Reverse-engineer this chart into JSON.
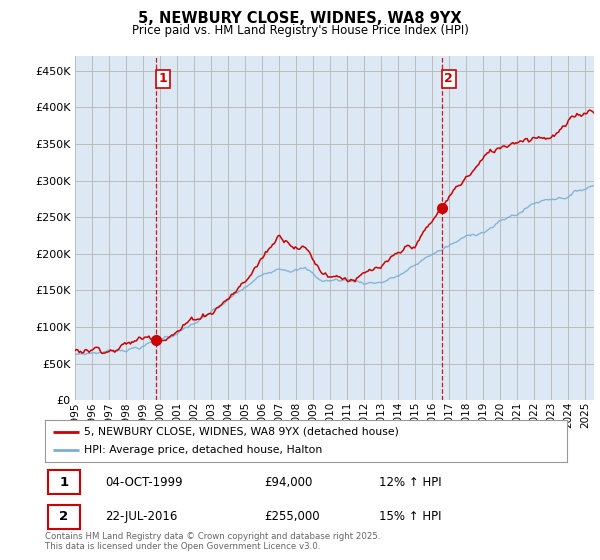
{
  "title": "5, NEWBURY CLOSE, WIDNES, WA8 9YX",
  "subtitle": "Price paid vs. HM Land Registry's House Price Index (HPI)",
  "y_values": [
    0,
    50000,
    100000,
    150000,
    200000,
    250000,
    300000,
    350000,
    400000,
    450000
  ],
  "ylim": [
    0,
    470000
  ],
  "xlim_start": 1995.0,
  "xlim_end": 2025.5,
  "red_line_color": "#CC0000",
  "blue_line_color": "#7BAFD4",
  "chart_bg_color": "#DCE9F5",
  "vline_color": "#CC0000",
  "bg_color": "#FFFFFF",
  "grid_color": "#BBBBBB",
  "legend_label_red": "5, NEWBURY CLOSE, WIDNES, WA8 9YX (detached house)",
  "legend_label_blue": "HPI: Average price, detached house, Halton",
  "transaction1_date": "04-OCT-1999",
  "transaction1_price": "£94,000",
  "transaction1_hpi": "12% ↑ HPI",
  "transaction1_year": 1999.75,
  "transaction2_date": "22-JUL-2016",
  "transaction2_price": "£255,000",
  "transaction2_hpi": "15% ↑ HPI",
  "transaction2_year": 2016.55,
  "footer": "Contains HM Land Registry data © Crown copyright and database right 2025.\nThis data is licensed under the Open Government Licence v3.0.",
  "x_ticks": [
    1995,
    1996,
    1997,
    1998,
    1999,
    2000,
    2001,
    2002,
    2003,
    2004,
    2005,
    2006,
    2007,
    2008,
    2009,
    2010,
    2011,
    2012,
    2013,
    2014,
    2015,
    2016,
    2017,
    2018,
    2019,
    2020,
    2021,
    2022,
    2023,
    2024,
    2025
  ]
}
